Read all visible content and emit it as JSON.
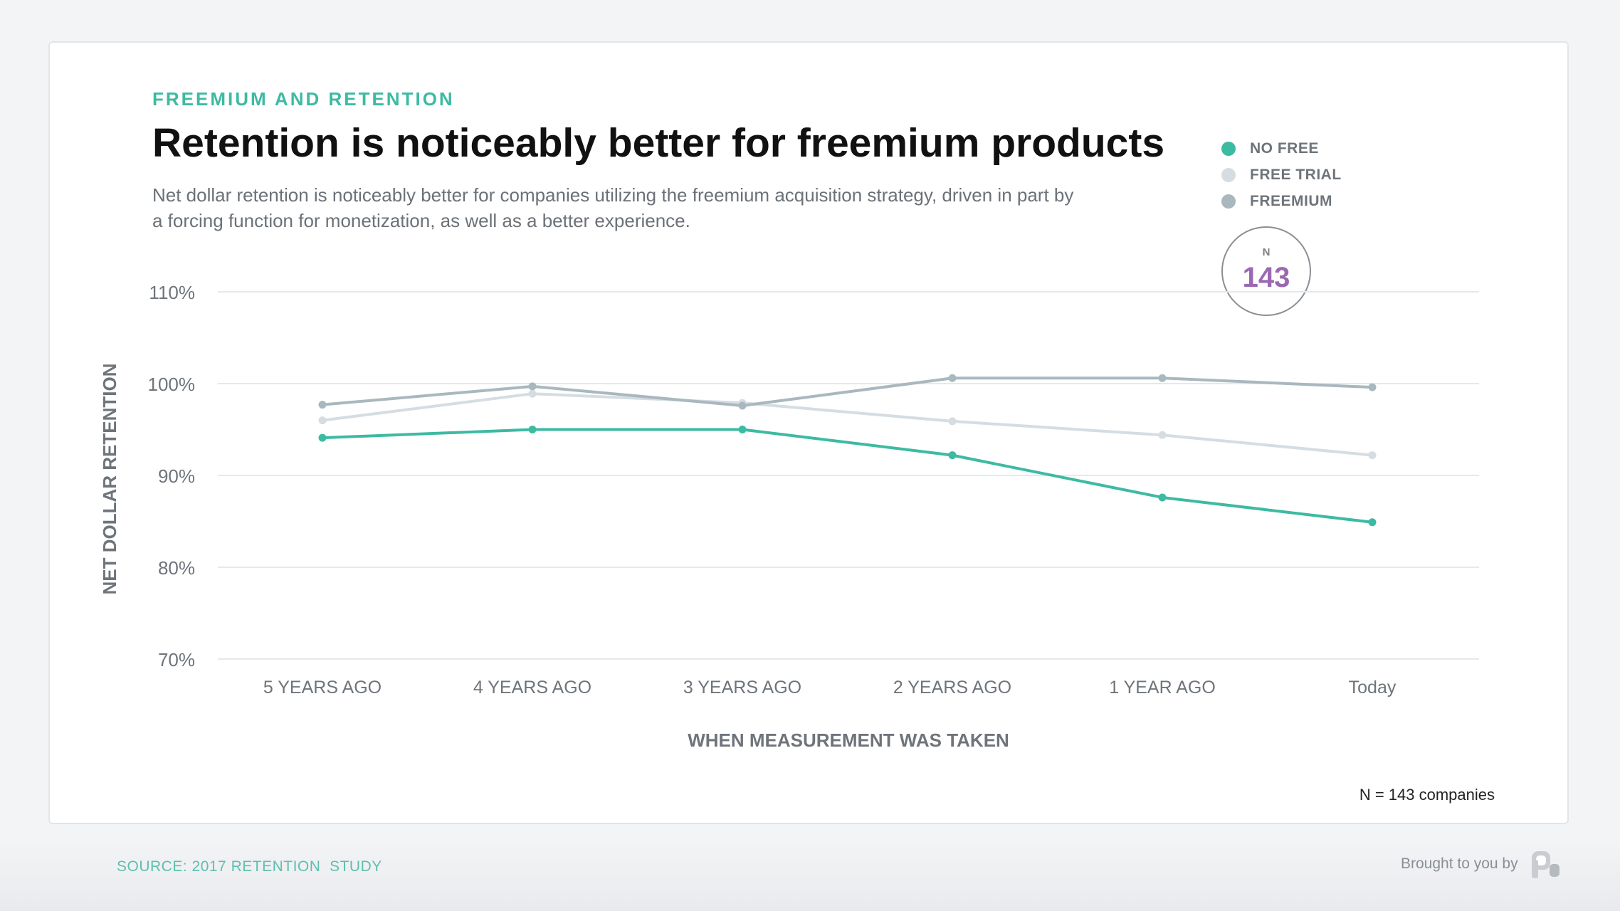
{
  "header": {
    "eyebrow": "FREEMIUM AND RETENTION",
    "title": "Retention is noticeably better for freemium products",
    "subtitle": "Net dollar retention is noticeably better for companies utilizing the freemium acquisition strategy, driven in part by a forcing function for monetization, as well as a better experience."
  },
  "legend": {
    "items": [
      {
        "label": "NO FREE",
        "color": "#3dbaa2"
      },
      {
        "label": "FREE TRIAL",
        "color": "#d5dde2"
      },
      {
        "label": "FREEMIUM",
        "color": "#a9b8bf"
      }
    ]
  },
  "badge": {
    "label": "N",
    "value": "143"
  },
  "footnote": "N = 143 companies",
  "footer": {
    "source": "SOURCE: 2017 RETENTION  STUDY",
    "brought_by": "Brought to you by",
    "logo_icon": "profitwell-p-icon"
  },
  "chart_data": {
    "type": "line",
    "title": "Retention is noticeably better for freemium products",
    "xlabel": "WHEN MEASUREMENT WAS TAKEN",
    "ylabel": "NET DOLLAR RETENTION",
    "categories": [
      "5 YEARS AGO",
      "4 YEARS AGO",
      "3 YEARS AGO",
      "2 YEARS AGO",
      "1 YEAR AGO",
      "Today"
    ],
    "ylim": [
      70,
      110
    ],
    "yticks": [
      70,
      80,
      90,
      100,
      110
    ],
    "ytick_labels": [
      "70%",
      "80%",
      "90%",
      "100%",
      "110%"
    ],
    "grid": true,
    "legend_position": "top-right",
    "series": [
      {
        "name": "FREE TRIAL",
        "color": "#d5dde2",
        "values": [
          96.0,
          98.9,
          97.9,
          95.9,
          94.4,
          92.2
        ]
      },
      {
        "name": "FREEMIUM",
        "color": "#a9b8bf",
        "values": [
          97.7,
          99.7,
          97.6,
          100.6,
          100.6,
          99.6
        ]
      },
      {
        "name": "NO FREE",
        "color": "#3dbaa2",
        "values": [
          94.1,
          95.0,
          95.0,
          92.2,
          87.6,
          84.9
        ]
      }
    ]
  }
}
